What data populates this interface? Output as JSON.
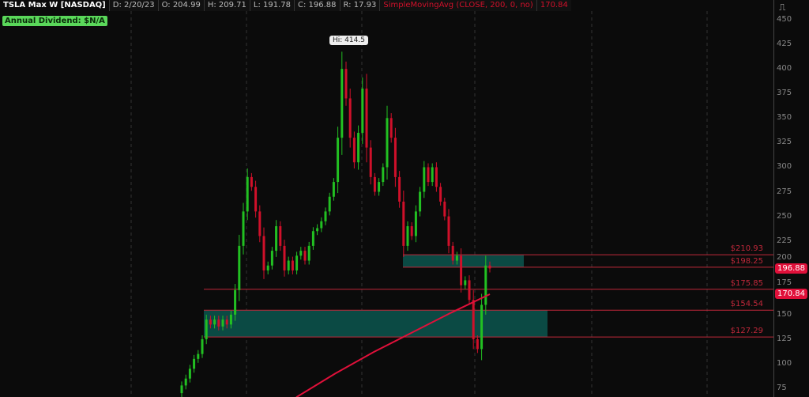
{
  "header": {
    "symbol": "TSLA Max W [NASDAQ]",
    "date": "D: 2/20/23",
    "open": "O: 204.99",
    "high": "H: 209.71",
    "low": "L: 191.78",
    "close": "C: 196.88",
    "range": "R: 17.93",
    "study": "SimpleMovingAvg (CLOSE, 200, 0, no)",
    "study_value": "170.84"
  },
  "dividend": "Annual Dividend: $N/A",
  "hi_label": "Hi: 414.5",
  "y_ticks": [
    450,
    425,
    400,
    375,
    350,
    325,
    300,
    275,
    250,
    225,
    200,
    175,
    150,
    125,
    100,
    75
  ],
  "levels": [
    {
      "label": "$210.93",
      "value": 210.93
    },
    {
      "label": "$198.25",
      "value": 198.25
    },
    {
      "label": "$175.85",
      "value": 175.85
    },
    {
      "label": "$154.54",
      "value": 154.54
    },
    {
      "label": "$127.29",
      "value": 127.29
    }
  ],
  "zones": [
    {
      "from": 198.25,
      "to": 210.93
    },
    {
      "from": 127.29,
      "to": 154.54
    }
  ],
  "price_tags": [
    {
      "label": "196.88",
      "value": 196.88
    },
    {
      "label": "170.84",
      "value": 170.84
    }
  ],
  "colors": {
    "up": "#22c022",
    "down": "#d0102a",
    "zone": "#0b4a44",
    "sma": "#e0103a",
    "level": "#c0283a"
  },
  "closes": [
    78,
    85,
    95,
    105,
    110,
    125,
    145,
    140,
    145,
    138,
    145,
    140,
    150,
    175,
    220,
    255,
    290,
    280,
    255,
    230,
    195,
    200,
    215,
    240,
    220,
    195,
    205,
    195,
    210,
    215,
    205,
    220,
    235,
    238,
    245,
    255,
    270,
    285,
    330,
    400,
    370,
    330,
    305,
    335,
    380,
    320,
    290,
    275,
    285,
    300,
    350,
    330,
    290,
    265,
    220,
    240,
    230,
    255,
    275,
    300,
    285,
    300,
    280,
    265,
    250,
    220,
    205,
    210,
    180,
    185,
    165,
    125,
    115,
    160,
    200,
    197
  ],
  "sma": [
    66,
    90,
    112,
    132,
    152,
    170.84
  ]
}
